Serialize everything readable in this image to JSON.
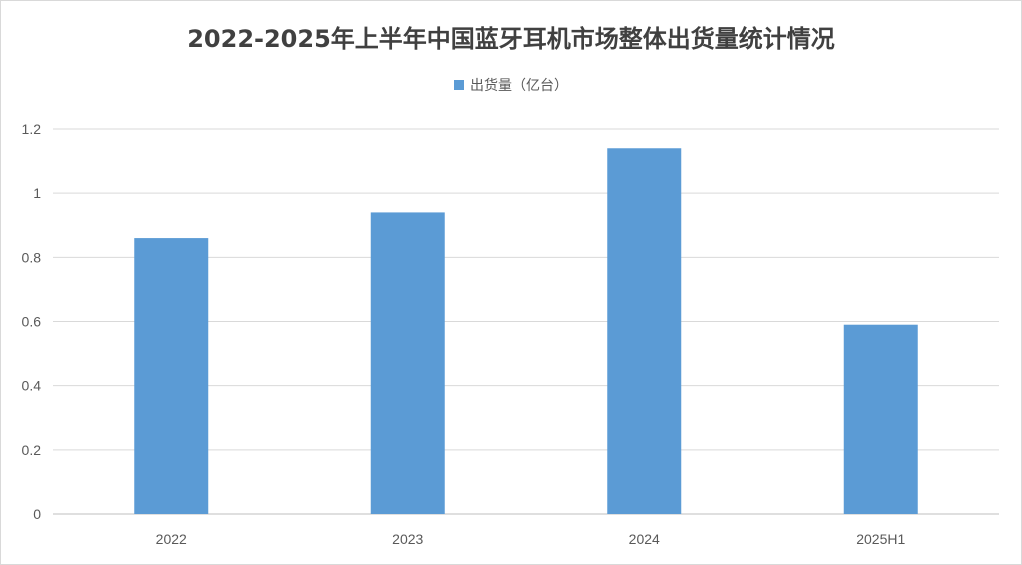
{
  "chart_data": {
    "type": "bar",
    "title": "2022-2025年上半年中国蓝牙耳机市场整体出货量统计情况",
    "categories": [
      "2022",
      "2023",
      "2024",
      "2025H1"
    ],
    "series": [
      {
        "name": "出货量（亿台）",
        "values": [
          0.86,
          0.94,
          1.14,
          0.59
        ]
      }
    ],
    "yticks": [
      "0",
      "0.2",
      "0.4",
      "0.6",
      "0.8",
      "1",
      "1.2"
    ],
    "ylim": [
      0,
      1.2
    ],
    "grid": true,
    "legend_position": "top",
    "colors": {
      "bar": "#5b9bd5",
      "grid": "#d9d9d9",
      "axis": "#bfbfbf"
    }
  }
}
